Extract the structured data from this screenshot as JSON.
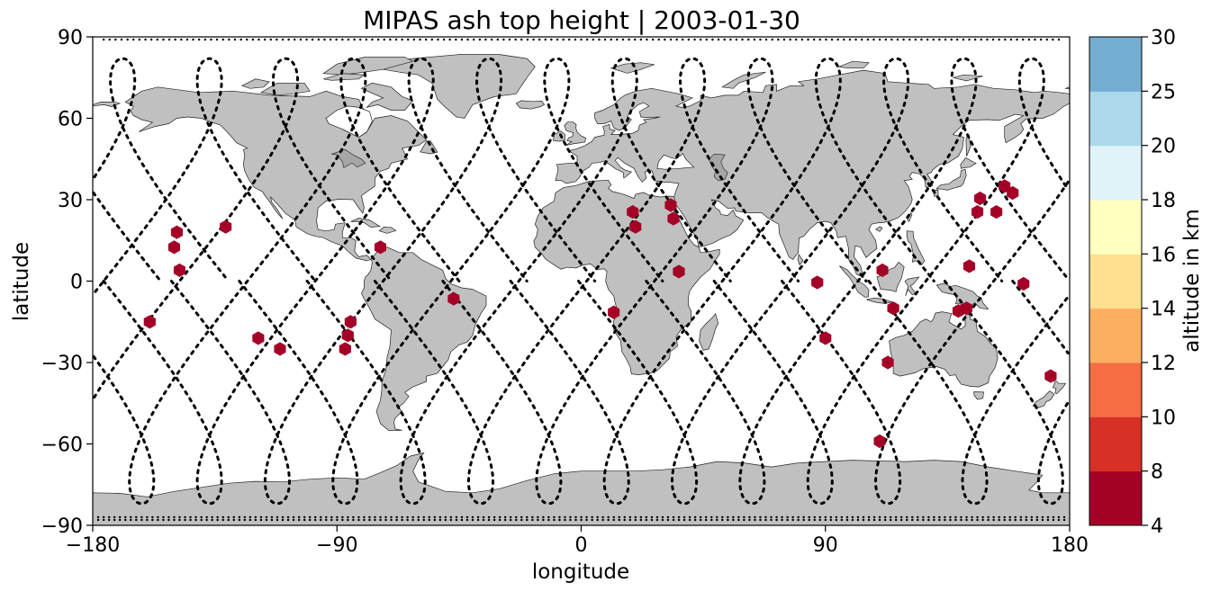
{
  "chart_data": {
    "type": "scatter",
    "title": "MIPAS ash top height | 2003-01-30",
    "xlabel": "longitude",
    "ylabel": "latitude",
    "xlim": [
      -180,
      180
    ],
    "ylim": [
      -90,
      90
    ],
    "xticks": [
      -180,
      -90,
      0,
      90,
      180
    ],
    "yticks": [
      -90,
      -60,
      -30,
      0,
      30,
      60,
      90
    ],
    "xtick_labels": [
      "−180",
      "−90",
      "0",
      "90",
      "180"
    ],
    "ytick_labels": [
      "−90",
      "−60",
      "−30",
      "0",
      "30",
      "60",
      "90"
    ],
    "background_map": "world coastlines, land filled grey",
    "colors": {
      "land": "#c0c0c0",
      "coastline": "#222222",
      "track": "#000000",
      "marker": "#a50026"
    },
    "marker_shape": "hexagon",
    "series": [
      {
        "values_km": "4-8 (lowest colour bin)",
        "points": [
          {
            "lon": -159,
            "lat": -15
          },
          {
            "lon": -149,
            "lat": 18
          },
          {
            "lon": -150,
            "lat": 12.5
          },
          {
            "lon": -148,
            "lat": 4
          },
          {
            "lon": -131,
            "lat": 20
          },
          {
            "lon": -119,
            "lat": -21
          },
          {
            "lon": -111,
            "lat": -25
          },
          {
            "lon": -85,
            "lat": -15
          },
          {
            "lon": -86,
            "lat": -20
          },
          {
            "lon": -87,
            "lat": -25
          },
          {
            "lon": -74,
            "lat": 12.5
          },
          {
            "lon": -47,
            "lat": -6.5
          },
          {
            "lon": 12,
            "lat": -11.5
          },
          {
            "lon": 19,
            "lat": 25.5
          },
          {
            "lon": 20,
            "lat": 20
          },
          {
            "lon": 33,
            "lat": 28
          },
          {
            "lon": 34,
            "lat": 23
          },
          {
            "lon": 36,
            "lat": 3.5
          },
          {
            "lon": 87,
            "lat": -0.5
          },
          {
            "lon": 90,
            "lat": -21
          },
          {
            "lon": 111,
            "lat": 4
          },
          {
            "lon": 115,
            "lat": -10
          },
          {
            "lon": 113,
            "lat": -30
          },
          {
            "lon": 110,
            "lat": -59
          },
          {
            "lon": 139,
            "lat": -11
          },
          {
            "lon": 142,
            "lat": -10
          },
          {
            "lon": 143,
            "lat": 5.5
          },
          {
            "lon": 146,
            "lat": 25.5
          },
          {
            "lon": 147,
            "lat": 30.5
          },
          {
            "lon": 153,
            "lat": 25.5
          },
          {
            "lon": 156,
            "lat": 35
          },
          {
            "lon": 159,
            "lat": 32.5
          },
          {
            "lon": 163,
            "lat": -1
          },
          {
            "lon": 173,
            "lat": -35
          }
        ]
      }
    ],
    "colorbar": {
      "label": "altitude in km",
      "tick_labels": [
        "4",
        "8",
        "10",
        "12",
        "14",
        "16",
        "18",
        "20",
        "25",
        "30"
      ],
      "bins": [
        {
          "from": 4,
          "to": 8,
          "color": "#a50026"
        },
        {
          "from": 8,
          "to": 10,
          "color": "#d73027"
        },
        {
          "from": 10,
          "to": 12,
          "color": "#f46d43"
        },
        {
          "from": 12,
          "to": 14,
          "color": "#fdae61"
        },
        {
          "from": 14,
          "to": 16,
          "color": "#fee090"
        },
        {
          "from": 16,
          "to": 18,
          "color": "#ffffbf"
        },
        {
          "from": 18,
          "to": 20,
          "color": "#e0f3f8"
        },
        {
          "from": 20,
          "to": 25,
          "color": "#abd9e9"
        },
        {
          "from": 25,
          "to": 30,
          "color": "#74add1"
        }
      ]
    }
  }
}
